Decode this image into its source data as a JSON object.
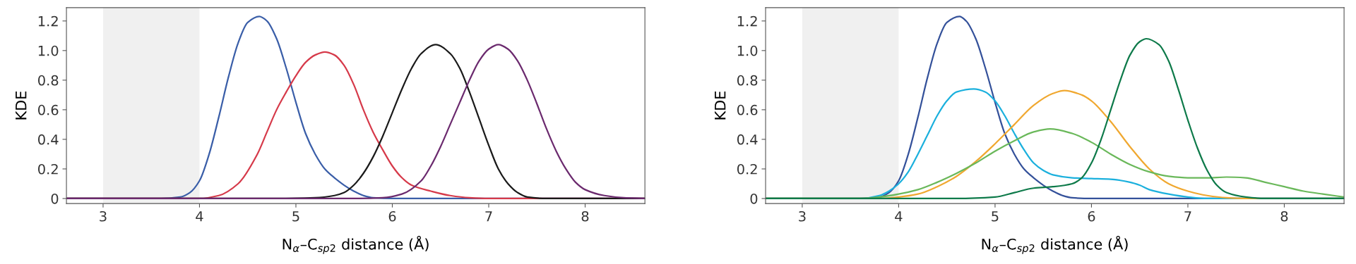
{
  "chart_data": [
    {
      "type": "line",
      "xlabel": "N$_{α}$–C$_{sp2}$ distance (Å)",
      "ylabel": "KDE",
      "xlim": [
        2.62,
        8.62
      ],
      "ylim": [
        -0.034,
        1.29
      ],
      "xticks": [
        3,
        4,
        5,
        6,
        7,
        8
      ],
      "yticks": [
        0,
        0.2,
        0.4,
        0.6,
        0.8,
        {
          "value": 1,
          "label": "1.0"
        },
        1.2
      ],
      "grid": false,
      "marker": "none",
      "line_style": "solid",
      "bands": [
        {
          "axis": "x",
          "from": 3,
          "to": 4,
          "color": "#f0f0f0"
        }
      ],
      "series": [
        {
          "color": "#3a5ea8",
          "x": [
            2.62,
            3.6,
            3.8,
            3.9,
            4.0,
            4.1,
            4.2,
            4.3,
            4.4,
            4.5,
            4.62,
            4.7,
            4.8,
            4.9,
            5.0,
            5.1,
            5.2,
            5.3,
            5.4,
            5.5,
            5.6,
            5.7,
            5.8,
            6.0,
            8.62
          ],
          "values": [
            0,
            0,
            0.01,
            0.04,
            0.12,
            0.3,
            0.55,
            0.82,
            1.05,
            1.19,
            1.23,
            1.2,
            1.08,
            0.88,
            0.65,
            0.44,
            0.3,
            0.2,
            0.14,
            0.09,
            0.05,
            0.02,
            0.005,
            0,
            0
          ]
        },
        {
          "color": "#d63a4a",
          "x": [
            2.62,
            4.0,
            4.2,
            4.4,
            4.6,
            4.7,
            4.8,
            4.9,
            5.0,
            5.1,
            5.2,
            5.3,
            5.4,
            5.5,
            5.6,
            5.7,
            5.8,
            5.9,
            6.0,
            6.1,
            6.2,
            6.4,
            6.6,
            6.8,
            7.0,
            8.62
          ],
          "values": [
            0,
            0,
            0.02,
            0.1,
            0.3,
            0.45,
            0.6,
            0.72,
            0.83,
            0.92,
            0.97,
            0.99,
            0.97,
            0.9,
            0.77,
            0.6,
            0.45,
            0.33,
            0.22,
            0.14,
            0.09,
            0.05,
            0.02,
            0.005,
            0,
            0
          ]
        },
        {
          "color": "#1a1a1a",
          "x": [
            2.62,
            4.8,
            5.2,
            5.4,
            5.5,
            5.6,
            5.7,
            5.8,
            5.9,
            6.0,
            6.1,
            6.2,
            6.3,
            6.45,
            6.6,
            6.7,
            6.8,
            6.9,
            7.0,
            7.1,
            7.2,
            7.3,
            7.4,
            7.6,
            8.62
          ],
          "values": [
            0,
            0,
            0.005,
            0.02,
            0.04,
            0.09,
            0.17,
            0.28,
            0.42,
            0.58,
            0.74,
            0.88,
            0.98,
            1.04,
            0.98,
            0.88,
            0.72,
            0.54,
            0.36,
            0.2,
            0.1,
            0.04,
            0.01,
            0,
            0
          ]
        },
        {
          "color": "#6b2a6e",
          "x": [
            2.62,
            5.6,
            5.9,
            6.1,
            6.3,
            6.4,
            6.5,
            6.6,
            6.7,
            6.8,
            6.9,
            7.0,
            7.1,
            7.2,
            7.3,
            7.4,
            7.5,
            7.6,
            7.7,
            7.8,
            7.9,
            8.0,
            8.2,
            8.4,
            8.62
          ],
          "values": [
            0,
            0,
            0.005,
            0.03,
            0.12,
            0.22,
            0.35,
            0.5,
            0.65,
            0.8,
            0.93,
            1.01,
            1.04,
            1.01,
            0.93,
            0.8,
            0.64,
            0.47,
            0.32,
            0.2,
            0.11,
            0.06,
            0.02,
            0.005,
            0
          ]
        }
      ]
    },
    {
      "type": "line",
      "xlabel": "N$_{α}$–C$_{sp2}$ distance (Å)",
      "ylabel": "KDE",
      "xlim": [
        2.62,
        8.62
      ],
      "ylim": [
        -0.034,
        1.29
      ],
      "xticks": [
        3,
        4,
        5,
        6,
        7,
        8
      ],
      "yticks": [
        0,
        0.2,
        0.4,
        0.6,
        0.8,
        {
          "value": 1,
          "label": "1.0"
        },
        1.2
      ],
      "grid": false,
      "marker": "none",
      "line_style": "solid",
      "bands": [
        {
          "axis": "x",
          "from": 3,
          "to": 4,
          "color": "#f0f0f0"
        }
      ],
      "series": [
        {
          "color": "#34519a",
          "x": [
            2.62,
            3.6,
            3.8,
            3.9,
            4.0,
            4.1,
            4.2,
            4.3,
            4.4,
            4.5,
            4.63,
            4.7,
            4.8,
            4.9,
            5.0,
            5.1,
            5.2,
            5.3,
            5.4,
            5.5,
            5.6,
            5.7,
            5.8,
            6.0,
            8.62
          ],
          "values": [
            0,
            0,
            0.01,
            0.04,
            0.12,
            0.3,
            0.55,
            0.82,
            1.05,
            1.19,
            1.23,
            1.2,
            1.08,
            0.88,
            0.65,
            0.44,
            0.3,
            0.2,
            0.14,
            0.09,
            0.05,
            0.02,
            0.005,
            0,
            0
          ]
        },
        {
          "color": "#1bb0dd",
          "x": [
            2.62,
            3.6,
            3.8,
            3.9,
            4.0,
            4.1,
            4.2,
            4.3,
            4.4,
            4.5,
            4.6,
            4.78,
            4.9,
            5.0,
            5.1,
            5.2,
            5.3,
            5.4,
            5.5,
            5.6,
            5.8,
            6.0,
            6.2,
            6.4,
            6.5,
            6.6,
            6.8,
            7.0,
            7.2,
            8.62
          ],
          "values": [
            0,
            0,
            0.02,
            0.05,
            0.1,
            0.18,
            0.3,
            0.43,
            0.56,
            0.66,
            0.72,
            0.74,
            0.72,
            0.66,
            0.56,
            0.44,
            0.33,
            0.24,
            0.19,
            0.16,
            0.14,
            0.135,
            0.13,
            0.11,
            0.09,
            0.06,
            0.03,
            0.01,
            0,
            0
          ]
        },
        {
          "color": "#f0a830",
          "x": [
            2.62,
            3.8,
            4.0,
            4.2,
            4.4,
            4.6,
            4.8,
            5.0,
            5.2,
            5.4,
            5.6,
            5.72,
            5.9,
            6.0,
            6.2,
            6.4,
            6.6,
            6.8,
            7.0,
            7.2,
            7.4,
            7.6,
            8.62
          ],
          "values": [
            0,
            0,
            0.01,
            0.03,
            0.08,
            0.15,
            0.25,
            0.37,
            0.5,
            0.63,
            0.71,
            0.73,
            0.7,
            0.66,
            0.52,
            0.35,
            0.2,
            0.1,
            0.05,
            0.02,
            0.005,
            0,
            0
          ]
        },
        {
          "color": "#6ab85a",
          "x": [
            2.62,
            3.6,
            3.8,
            4.0,
            4.2,
            4.4,
            4.6,
            4.8,
            5.0,
            5.2,
            5.4,
            5.57,
            5.8,
            6.0,
            6.2,
            6.4,
            6.6,
            6.8,
            7.0,
            7.2,
            7.4,
            7.6,
            7.8,
            8.0,
            8.2,
            8.4,
            8.62
          ],
          "values": [
            0,
            0,
            0.01,
            0.03,
            0.06,
            0.11,
            0.17,
            0.24,
            0.32,
            0.39,
            0.45,
            0.47,
            0.44,
            0.38,
            0.3,
            0.23,
            0.18,
            0.15,
            0.14,
            0.14,
            0.145,
            0.14,
            0.11,
            0.08,
            0.05,
            0.03,
            0.01
          ]
        },
        {
          "color": "#0e7a4a",
          "x": [
            2.62,
            4.6,
            5.0,
            5.2,
            5.4,
            5.6,
            5.8,
            5.9,
            6.0,
            6.1,
            6.2,
            6.3,
            6.4,
            6.5,
            6.57,
            6.7,
            6.8,
            6.9,
            7.0,
            7.1,
            7.2,
            7.3,
            7.4,
            7.6,
            7.8,
            8.62
          ],
          "values": [
            0,
            0,
            0.01,
            0.04,
            0.07,
            0.08,
            0.1,
            0.14,
            0.24,
            0.4,
            0.6,
            0.8,
            0.97,
            1.06,
            1.08,
            1.04,
            0.93,
            0.74,
            0.53,
            0.34,
            0.19,
            0.09,
            0.04,
            0.01,
            0,
            0
          ]
        }
      ]
    }
  ]
}
